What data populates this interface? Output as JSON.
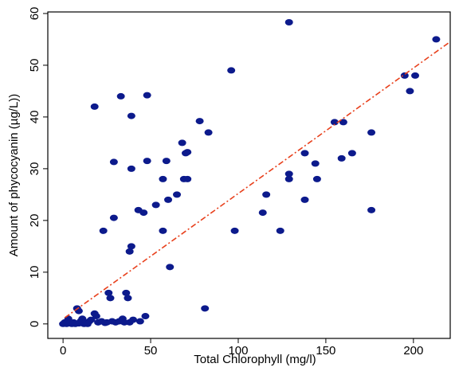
{
  "chart_data": {
    "type": "scatter",
    "x_label": "Total Chlorophyll (mg/l)",
    "y_label": "Amount of phycocyanin (µg/L))",
    "x": [
      0,
      1,
      2,
      3,
      4,
      5,
      6,
      7,
      8,
      9,
      10,
      11,
      12,
      13,
      15,
      16,
      18,
      19,
      20,
      22,
      24,
      26,
      27,
      28,
      30,
      32,
      34,
      35,
      36,
      37,
      38,
      40,
      44,
      47,
      25,
      14,
      9,
      18,
      23,
      29,
      29,
      33,
      38,
      39,
      39,
      39,
      43,
      46,
      48,
      48,
      53,
      57,
      57,
      59,
      60,
      61,
      65,
      68,
      69,
      70,
      71,
      71,
      78,
      81,
      83,
      96,
      98,
      114,
      116,
      124,
      129,
      129,
      129,
      138,
      138,
      144,
      145,
      155,
      159,
      160,
      165,
      176,
      176,
      195,
      198,
      201,
      213
    ],
    "values": [
      0,
      0.3,
      0,
      1,
      0.2,
      0,
      0.3,
      0,
      3,
      2.5,
      0.5,
      1,
      0,
      0.3,
      0.5,
      0.8,
      2,
      1.5,
      0.3,
      0.5,
      0.2,
      6,
      5,
      0.5,
      0.3,
      0.5,
      1,
      0.3,
      6,
      5,
      0.3,
      0.8,
      0.5,
      1.5,
      0.3,
      0,
      0.1,
      42,
      18,
      31.3,
      20.5,
      44,
      14,
      15,
      30,
      40.2,
      22,
      21.5,
      31.5,
      44.2,
      23,
      18,
      28,
      31.5,
      24,
      11,
      25,
      35,
      28,
      33,
      33.2,
      28,
      39.2,
      3,
      37,
      49,
      18,
      21.5,
      25,
      18,
      58.3,
      28,
      29,
      24,
      33,
      31,
      28,
      39,
      32,
      39,
      33,
      37,
      22,
      48,
      45,
      48,
      55
    ],
    "color": "#0c1a8c",
    "trend_line": {
      "x": [
        1,
        220
      ],
      "values": [
        1.2,
        54.3
      ],
      "color": "#e8401c"
    },
    "xlim": [
      -8.7,
      221
    ],
    "ylim": [
      -2.8,
      60.3
    ],
    "xticks": [
      0,
      50,
      100,
      150,
      200
    ],
    "yticks": [
      0,
      10,
      20,
      30,
      40,
      50,
      60
    ]
  }
}
